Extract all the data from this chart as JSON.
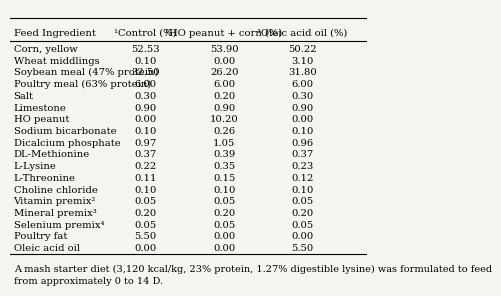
{
  "headers": [
    "Feed Ingredient",
    "¹Control (%)",
    "²HO peanut + corn (%)",
    "³Oleic acid oil (%)"
  ],
  "rows": [
    [
      "Corn, yellow",
      "52.53",
      "53.90",
      "50.22"
    ],
    [
      "Wheat middlings",
      "0.10",
      "0.00",
      "3.10"
    ],
    [
      "Soybean meal (47% protein)",
      "32.50",
      "26.20",
      "31.80"
    ],
    [
      "Poultry meal (63% protein)",
      "6.00",
      "6.00",
      "6.00"
    ],
    [
      "Salt",
      "0.30",
      "0.20",
      "0.30"
    ],
    [
      "Limestone",
      "0.90",
      "0.90",
      "0.90"
    ],
    [
      "HO peanut",
      "0.00",
      "10.20",
      "0.00"
    ],
    [
      "Sodium bicarbonate",
      "0.10",
      "0.26",
      "0.10"
    ],
    [
      "Dicalcium phosphate",
      "0.97",
      "1.05",
      "0.96"
    ],
    [
      "DL-Methionine",
      "0.37",
      "0.39",
      "0.37"
    ],
    [
      "L-Lysine",
      "0.22",
      "0.35",
      "0.23"
    ],
    [
      "L-Threonine",
      "0.11",
      "0.15",
      "0.12"
    ],
    [
      "Choline chloride",
      "0.10",
      "0.10",
      "0.10"
    ],
    [
      "Vitamin premix²",
      "0.05",
      "0.05",
      "0.05"
    ],
    [
      "Mineral premix³",
      "0.20",
      "0.20",
      "0.20"
    ],
    [
      "Selenium premix⁴",
      "0.05",
      "0.05",
      "0.05"
    ],
    [
      "Poultry fat",
      "5.50",
      "0.00",
      "0.00"
    ],
    [
      "Oleic acid oil",
      "0.00",
      "0.00",
      "5.50"
    ]
  ],
  "footnote": "A mash starter diet (3,120 kcal/kg, 23% protein, 1.27% digestible lysine) was formulated to feed\nfrom approximately 0 to 14 D.",
  "background_color": "#f5f5f0",
  "header_line_color": "#000000",
  "text_color": "#000000",
  "font_size": 7.2,
  "header_font_size": 7.2,
  "footnote_font_size": 7.0
}
